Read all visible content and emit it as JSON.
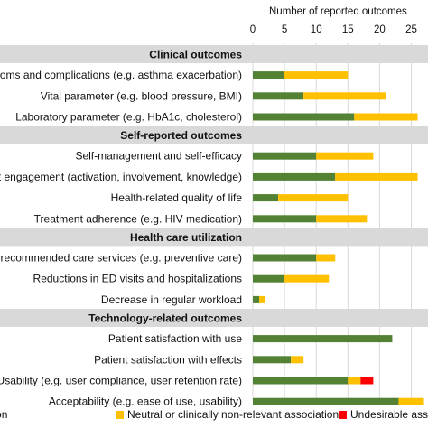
{
  "chart_data": {
    "type": "bar",
    "orientation": "horizontal",
    "stacked": true,
    "xlabel": "Number of reported outcomes",
    "xlim": [
      0,
      25
    ],
    "xticks": [
      0,
      5,
      10,
      15,
      20,
      25
    ],
    "grid": true,
    "legend_position": "bottom",
    "colors": {
      "beneficial": "#548235",
      "neutral": "#FFC000",
      "undesirable": "#FF0000",
      "group_background": "#D9D9D9"
    },
    "series_names": [
      "Beneficial association",
      "Neutral or clinically non-relevant association",
      "Undesirable association"
    ],
    "groups": [
      {
        "name": "Clinical outcomes",
        "rows": [
          {
            "label": "Symptoms and complications (e.g. asthma exacerbation)",
            "values": [
              5,
              10,
              0
            ]
          },
          {
            "label": "Vital parameter (e.g. blood pressure, BMI)",
            "values": [
              8,
              13,
              0
            ]
          },
          {
            "label": "Laboratory parameter (e.g. HbA1c, cholesterol)",
            "values": [
              16,
              10,
              0
            ]
          }
        ]
      },
      {
        "name": "Self-reported outcomes",
        "rows": [
          {
            "label": "Self-management and self-efficacy",
            "values": [
              10,
              9,
              0
            ]
          },
          {
            "label": "Patient engagement (activation, involvement, knowledge)",
            "values": [
              13,
              13,
              0
            ]
          },
          {
            "label": "Health-related quality of life",
            "values": [
              4,
              11,
              0
            ]
          },
          {
            "label": "Treatment adherence (e.g. HIV medication)",
            "values": [
              10,
              8,
              0
            ]
          }
        ]
      },
      {
        "name": "Health care utilization",
        "rows": [
          {
            "label": "Use of recommended care services (e.g. preventive care)",
            "values": [
              10,
              3,
              0
            ]
          },
          {
            "label": "Reductions in ED visits and hospitalizations",
            "values": [
              5,
              7,
              0
            ]
          },
          {
            "label": "Decrease in regular workload",
            "values": [
              1,
              1,
              0
            ]
          }
        ]
      },
      {
        "name": "Technology-related outcomes",
        "rows": [
          {
            "label": "Patient satisfaction with use",
            "values": [
              22,
              0,
              0
            ]
          },
          {
            "label": "Patient satisfaction with effects",
            "values": [
              6,
              2,
              0
            ]
          },
          {
            "label": "Usability (e.g. user compliance, user retention rate)",
            "values": [
              15,
              2,
              2
            ]
          },
          {
            "label": "Acceptability (e.g. ease of use, usability)",
            "values": [
              23,
              4,
              0
            ]
          }
        ]
      }
    ]
  }
}
